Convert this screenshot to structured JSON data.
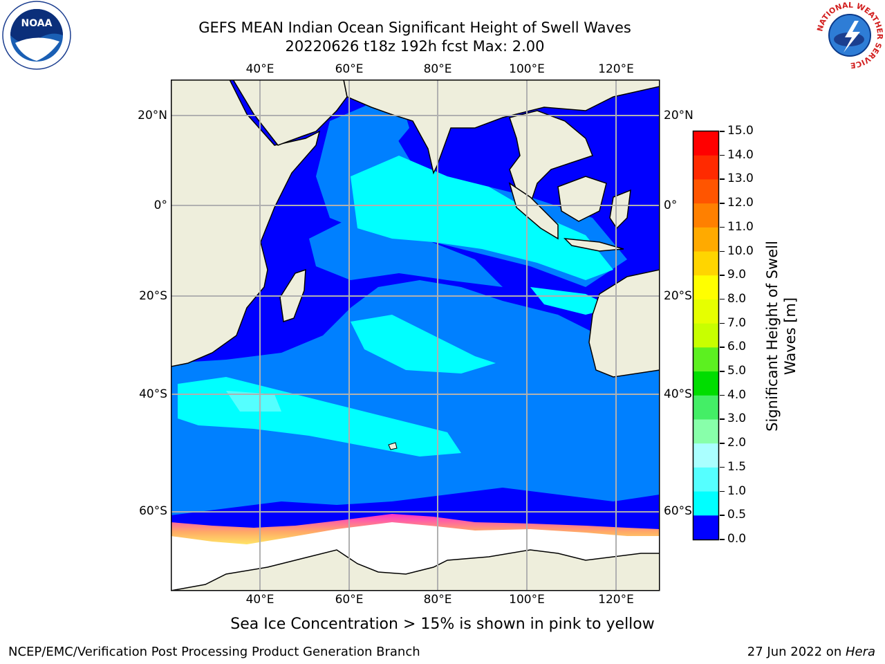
{
  "title": {
    "line1": "GEFS MEAN Indian Ocean Significant Height of Swell Waves",
    "line2": "20220626 t18z 192h fcst   Max: 2.00"
  },
  "logos": {
    "noara": "NOAA",
    "nws_ring": "NATIONAL WEATHER SERVICE"
  },
  "map": {
    "lon_labels": [
      "40°E",
      "60°E",
      "80°E",
      "100°E",
      "120°E"
    ],
    "lat_labels": [
      "20°N",
      "0°",
      "20°S",
      "40°S",
      "60°S"
    ],
    "note": "Sea Ice Concentration > 15% is shown in pink to yellow",
    "colors": {
      "land": "#eeeedc",
      "ocean_low": "#0000ff",
      "ocean_mid": "#0080ff",
      "ocean_high": "#00ffff",
      "ice": "#ffffff",
      "ice_edge": "#ff66cc"
    }
  },
  "colorbar": {
    "title_line1": "Significant Height of Swell",
    "title_line2": "Waves [m]",
    "ticks": [
      "15.0",
      "14.0",
      "13.0",
      "12.0",
      "11.0",
      "10.0",
      "9.0",
      "8.0",
      "7.0",
      "6.0",
      "5.0",
      "4.0",
      "3.0",
      "2.0",
      "1.5",
      "1.0",
      "0.5",
      "0.0"
    ],
    "colors": [
      "#ff0000",
      "#ff2a00",
      "#ff5500",
      "#ff8000",
      "#ffaa00",
      "#ffd500",
      "#ffff00",
      "#e6ff00",
      "#c8ff00",
      "#5cf020",
      "#00dd00",
      "#44ee66",
      "#88ffaa",
      "#aaffff",
      "#55ffff",
      "#00ffff",
      "#0080ff",
      "#0000ff"
    ]
  },
  "footer": {
    "left": "NCEP/EMC/Verification Post Processing Product Generation Branch",
    "right_prefix": "27 Jun 2022 on ",
    "right_host": "Hera"
  }
}
